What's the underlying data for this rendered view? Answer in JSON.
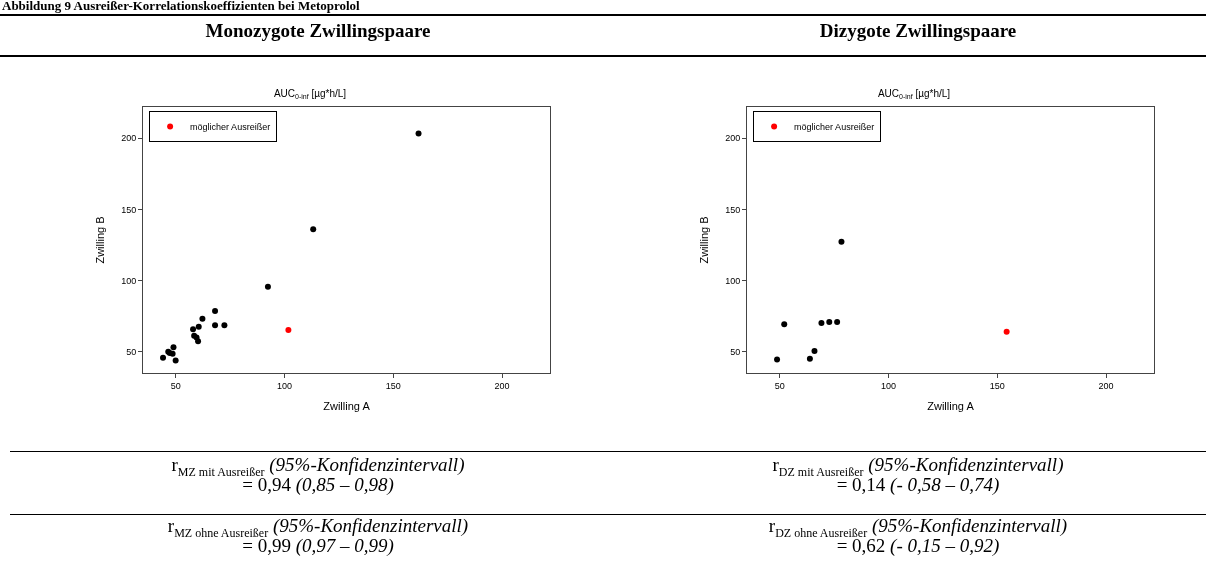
{
  "chart_data": [
    {
      "type": "scatter",
      "title": "AUC$_{0-inf}$ [µg*h/L]",
      "xlabel": "Zwilling A",
      "ylabel": "Zwilling B",
      "xlim": [
        35,
        222
      ],
      "ylim": [
        35,
        222
      ],
      "xticks": [
        50,
        100,
        150,
        200
      ],
      "yticks": [
        50,
        100,
        150,
        200
      ],
      "grid": false,
      "legend": "top left",
      "marker": "circle",
      "series": [
        {
          "color": "#000000",
          "x": [
            44.2,
            46.6,
            49.0,
            48.6,
            50.0,
            47.3,
            58.0,
            60.6,
            62.3,
            58.5,
            59.6,
            60.3,
            68.1,
            68.1,
            72.4,
            92.4,
            113.2,
            161.6
          ],
          "values": [
            45.7,
            50.0,
            53.1,
            48.6,
            43.8,
            49.0,
            65.7,
            67.6,
            73.1,
            61.2,
            60.0,
            57.4,
            78.5,
            68.5,
            68.5,
            95.6,
            136.0,
            203.3
          ]
        },
        {
          "name": "möglicher Ausreißer",
          "color": "#ff0000",
          "x": [
            101.8
          ],
          "values": [
            65.2
          ]
        }
      ],
      "annotations": [
        "Abbildung 9 Ausreißer-Korrelationskoeffizienten bei Metoprolol",
        "Monozygote Zwillingspaare",
        "r$_{MZ mit Ausreißer}$ (95%-Konfidenzintervall)",
        "= 0,94 (0,85 – 0,98)",
        "r$_{MZ ohne Ausreißer}$ (95%-Konfidenzintervall)",
        "= 0,99 (0,97 – 0,99)"
      ]
    },
    {
      "type": "scatter",
      "title": "AUC$_{0-inf}$ [µg*h/L]",
      "xlabel": "Zwilling A",
      "ylabel": "Zwilling B",
      "xlim": [
        35,
        222
      ],
      "ylim": [
        35,
        222
      ],
      "xticks": [
        50,
        100,
        150,
        200
      ],
      "yticks": [
        50,
        100,
        150,
        200
      ],
      "grid": false,
      "legend": "top left",
      "marker": "circle",
      "series": [
        {
          "color": "#000000",
          "x": [
            48.8,
            52.1,
            63.9,
            66.0,
            69.2,
            72.8,
            76.4,
            78.4
          ],
          "values": [
            44.5,
            69.3,
            45.0,
            50.5,
            70.2,
            70.9,
            70.9,
            127.3
          ]
        },
        {
          "name": "möglicher Ausreißer",
          "color": "#ff0000",
          "x": [
            154.3
          ],
          "values": [
            64.0
          ]
        }
      ],
      "annotations": [
        "Dizygote Zwillingspaare",
        "r$_{DZ mit Ausreißer}$ (95%-Konfidenzintervall)",
        "= 0,14 (- 0,58 – 0,74)",
        "r$_{DZ ohne Ausreißer}$ (95%-Konfidenzintervall)",
        "= 0,62 (- 0,15 – 0,92)"
      ]
    }
  ]
}
